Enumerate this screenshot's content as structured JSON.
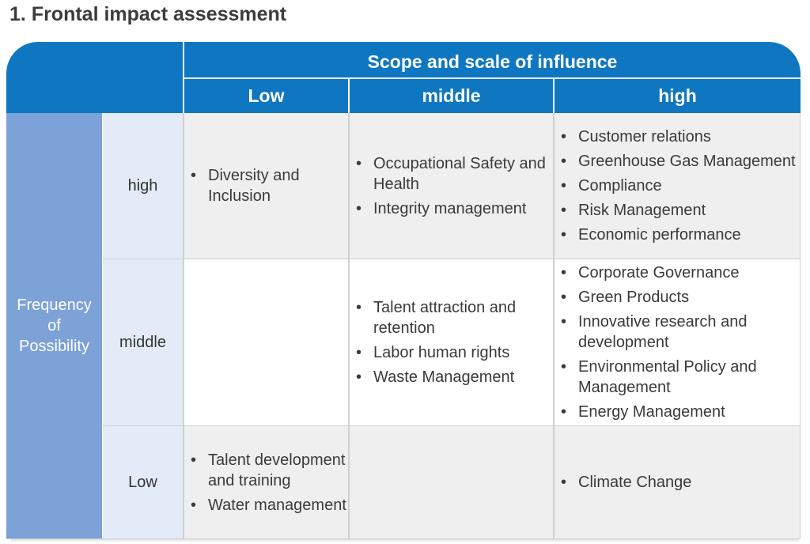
{
  "title": "1. Frontal impact assessment",
  "header": {
    "scope": "Scope and scale of influence",
    "cols": [
      "Low",
      "middle",
      "high"
    ]
  },
  "side_label": "Frequency of Possibility",
  "side_lines": [
    "Frequency",
    "of",
    "Possibility"
  ],
  "rows": [
    {
      "label": "high",
      "cells": [
        [
          "Diversity and Inclusion"
        ],
        [
          "Occupational Safety and Health",
          "Integrity management"
        ],
        [
          "Customer relations",
          "Greenhouse Gas Management",
          "Compliance",
          "Risk Management",
          "Economic performance"
        ]
      ]
    },
    {
      "label": "middle",
      "cells": [
        [],
        [
          "Talent attraction and retention",
          "Labor human rights",
          "Waste Management"
        ],
        [
          "Corporate Governance",
          "Green Products",
          "Innovative research and development",
          "Environmental Policy and Management",
          "Energy Management"
        ]
      ]
    },
    {
      "label": "Low",
      "cells": [
        [
          "Talent development and training",
          "Water management"
        ],
        [],
        [
          "Climate Change"
        ]
      ]
    }
  ],
  "colors": {
    "header_blue": "#0f77c1",
    "side_blue": "#7ca2d7",
    "row_label_bg": "#e2ebf7",
    "cell_grey": "#efefef"
  }
}
